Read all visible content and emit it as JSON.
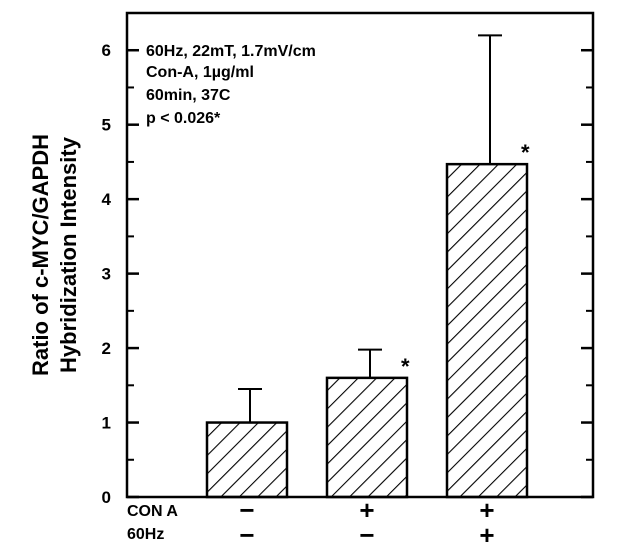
{
  "chart_data": {
    "type": "bar",
    "ylabel_line1": "Ratio of c-MYC/GAPDH",
    "ylabel_line2": "Hybridization Intensity",
    "ylim": [
      0,
      6.5
    ],
    "yticks": [
      "0",
      "1",
      "2",
      "3",
      "4",
      "5",
      "6"
    ],
    "grid": false,
    "annotations": [
      "60Hz, 22mT, 1.7mV/cm",
      "Con-A, 1µg/ml",
      "60min, 37C",
      "p < 0.026*"
    ],
    "bars": [
      {
        "value": 1.0,
        "error": 0.45,
        "significant": false
      },
      {
        "value": 1.6,
        "error": 0.38,
        "significant": true
      },
      {
        "value": 4.47,
        "error": 1.73,
        "significant": true
      }
    ],
    "significance_marker": "*",
    "conditions": [
      {
        "label": "CON A",
        "values": [
          "−",
          "+",
          "+"
        ]
      },
      {
        "label": "60Hz",
        "values": [
          "−",
          "−",
          "+"
        ]
      }
    ]
  }
}
